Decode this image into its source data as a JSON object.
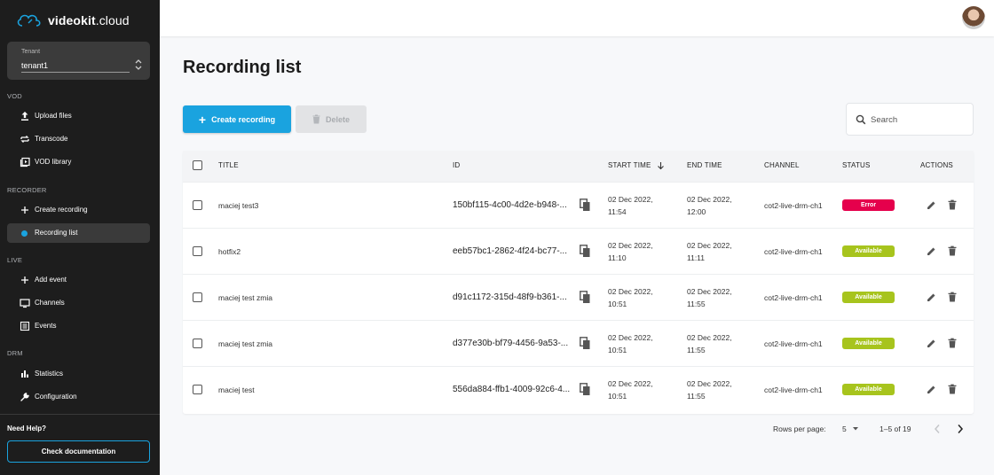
{
  "brand": {
    "name_bold": "videokit",
    "name_rest": ".cloud"
  },
  "tenant": {
    "label": "Tenant",
    "value": "tenant1"
  },
  "sidebar": {
    "sections": [
      {
        "title": "VOD",
        "items": [
          {
            "label": "Upload files",
            "icon": "upload-icon"
          },
          {
            "label": "Transcode",
            "icon": "transcode-icon"
          },
          {
            "label": "VOD library",
            "icon": "video-library-icon"
          }
        ]
      },
      {
        "title": "RECORDER",
        "items": [
          {
            "label": "Create recording",
            "icon": "plus-icon"
          },
          {
            "label": "Recording list",
            "icon": "dot-icon",
            "active": true
          }
        ]
      },
      {
        "title": "LIVE",
        "items": [
          {
            "label": "Add event",
            "icon": "plus-icon"
          },
          {
            "label": "Channels",
            "icon": "tv-icon"
          },
          {
            "label": "Events",
            "icon": "list-icon"
          }
        ]
      },
      {
        "title": "DRM",
        "items": [
          {
            "label": "Statistics",
            "icon": "bar-chart-icon"
          },
          {
            "label": "Configuration",
            "icon": "wrench-icon"
          }
        ]
      }
    ],
    "help_title": "Need Help?",
    "doc_button": "Check documentation"
  },
  "page": {
    "title": "Recording list",
    "create_label": "Create recording",
    "delete_label": "Delete",
    "search_placeholder": "Search"
  },
  "table": {
    "columns": [
      "TITLE",
      "ID",
      "START TIME",
      "END TIME",
      "CHANNEL",
      "STATUS",
      "ACTIONS"
    ],
    "rows": [
      {
        "title": "maciej test3",
        "id": "150bf115-4c00-4d2e-b948-...",
        "start_date": "02 Dec 2022,",
        "start_time": "11:54",
        "end_date": "02 Dec 2022,",
        "end_time": "12:00",
        "channel": "cot2-live-drm-ch1",
        "status": "Error"
      },
      {
        "title": "hotfix2",
        "id": "eeb57bc1-2862-4f24-bc77-...",
        "start_date": "02 Dec 2022,",
        "start_time": "11:10",
        "end_date": "02 Dec 2022,",
        "end_time": "11:11",
        "channel": "cot2-live-drm-ch1",
        "status": "Available"
      },
      {
        "title": "maciej test zmia",
        "id": "d91c1172-315d-48f9-b361-...",
        "start_date": "02 Dec 2022,",
        "start_time": "10:51",
        "end_date": "02 Dec 2022,",
        "end_time": "11:55",
        "channel": "cot2-live-drm-ch1",
        "status": "Available"
      },
      {
        "title": "maciej test zmia",
        "id": "d377e30b-bf79-4456-9a53-...",
        "start_date": "02 Dec 2022,",
        "start_time": "10:51",
        "end_date": "02 Dec 2022,",
        "end_time": "11:55",
        "channel": "cot2-live-drm-ch1",
        "status": "Available"
      },
      {
        "title": "maciej test",
        "id": "556da884-ffb1-4009-92c6-4...",
        "start_date": "02 Dec 2022,",
        "start_time": "10:51",
        "end_date": "02 Dec 2022,",
        "end_time": "11:55",
        "channel": "cot2-live-drm-ch1",
        "status": "Available"
      }
    ]
  },
  "pagination": {
    "rows_per_page_label": "Rows per page:",
    "rows_per_page": "5",
    "range": "1–5 of 19"
  },
  "colors": {
    "accent": "#1aa3df",
    "error": "#e5004c",
    "available": "#a7c41d",
    "sidebar_bg": "#1d1d1d"
  }
}
